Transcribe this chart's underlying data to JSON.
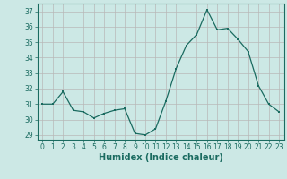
{
  "x": [
    0,
    1,
    2,
    3,
    4,
    5,
    6,
    7,
    8,
    9,
    10,
    11,
    12,
    13,
    14,
    15,
    16,
    17,
    18,
    19,
    20,
    21,
    22,
    23
  ],
  "y": [
    31,
    31,
    31.8,
    30.6,
    30.5,
    30.1,
    30.4,
    30.6,
    30.7,
    29.1,
    29.0,
    29.4,
    31.2,
    33.3,
    34.8,
    35.5,
    37.1,
    35.8,
    35.9,
    35.2,
    34.4,
    32.2,
    31.0,
    30.5
  ],
  "xlabel": "Humidex (Indice chaleur)",
  "bg_color": "#cce8e5",
  "line_color": "#1a6b60",
  "marker_color": "#1a6b60",
  "grid_color": "#b8b8b8",
  "ylim": [
    28.7,
    37.5
  ],
  "xlim": [
    -0.5,
    23.5
  ],
  "yticks": [
    29,
    30,
    31,
    32,
    33,
    34,
    35,
    36,
    37
  ],
  "xticks": [
    0,
    1,
    2,
    3,
    4,
    5,
    6,
    7,
    8,
    9,
    10,
    11,
    12,
    13,
    14,
    15,
    16,
    17,
    18,
    19,
    20,
    21,
    22,
    23
  ],
  "tick_fontsize": 5.5,
  "xlabel_fontsize": 7
}
